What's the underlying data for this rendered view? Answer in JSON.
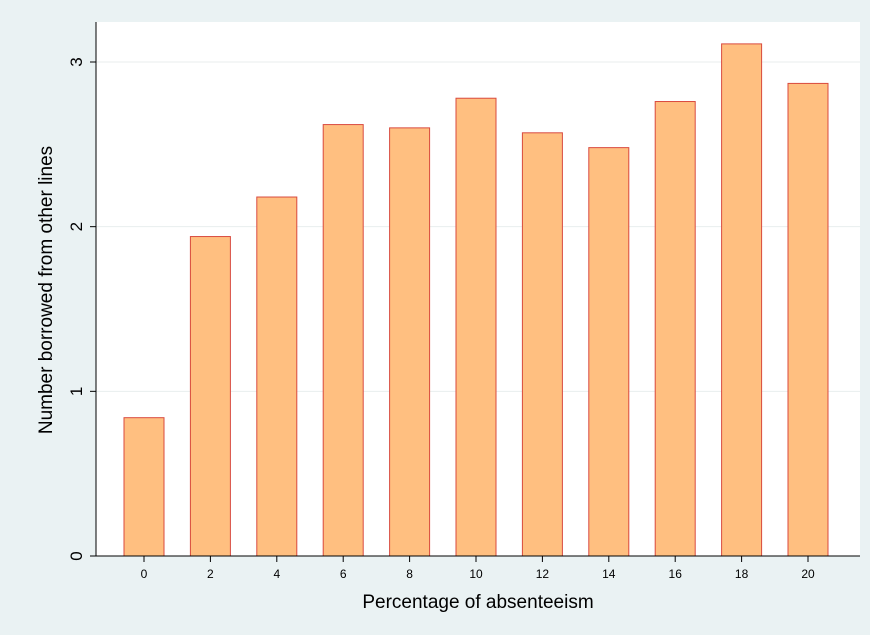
{
  "colors": {
    "outer_background": "#eaf2f3",
    "plot_background": "#ffffff",
    "bar_fill": "#ffbf80",
    "bar_stroke": "#d94a3e",
    "gridline": "#e8eeee",
    "axis_line": "#000000"
  },
  "chart_data": {
    "type": "bar",
    "categories": [
      "0",
      "2",
      "4",
      "6",
      "8",
      "10",
      "12",
      "14",
      "16",
      "18",
      "20"
    ],
    "values": [
      0.84,
      1.94,
      2.18,
      2.62,
      2.6,
      2.78,
      2.57,
      2.48,
      2.76,
      3.11,
      2.87
    ],
    "xlabel": "Percentage of absenteeism",
    "ylabel": "Number borrowed from other lines",
    "ylim": [
      0,
      3.2
    ],
    "yticks": [
      "0",
      "1",
      "2",
      "3"
    ],
    "grid": "horizontal",
    "legend": "none"
  }
}
